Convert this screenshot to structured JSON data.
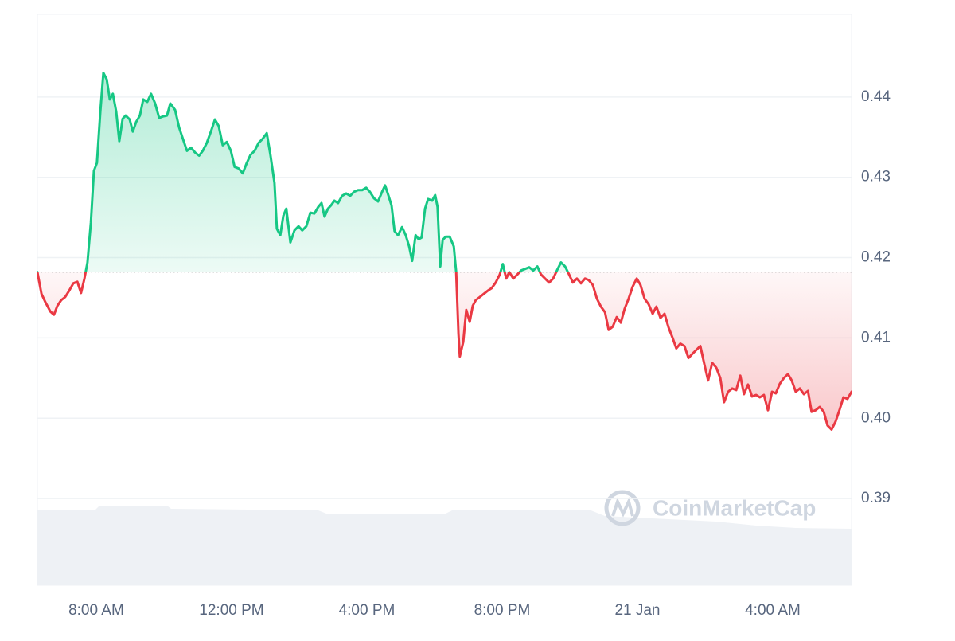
{
  "chart_data": {
    "type": "line",
    "watermark": "CoinMarketCap",
    "x": [
      6.26,
      6.38,
      6.49,
      6.64,
      6.75,
      6.85,
      6.96,
      7.08,
      7.2,
      7.32,
      7.44,
      7.55,
      7.65,
      7.74,
      7.84,
      7.93,
      8.02,
      8.12,
      8.21,
      8.31,
      8.4,
      8.49,
      8.59,
      8.68,
      8.78,
      8.87,
      8.99,
      9.08,
      9.18,
      9.29,
      9.39,
      9.51,
      9.62,
      9.74,
      9.86,
      9.98,
      10.09,
      10.19,
      10.33,
      10.45,
      10.56,
      10.68,
      10.8,
      10.92,
      11.04,
      11.15,
      11.27,
      11.39,
      11.51,
      11.62,
      11.74,
      11.86,
      11.98,
      12.09,
      12.21,
      12.33,
      12.45,
      12.56,
      12.68,
      12.8,
      12.92,
      13.04,
      13.15,
      13.27,
      13.34,
      13.44,
      13.53,
      13.62,
      13.74,
      13.86,
      13.98,
      14.09,
      14.21,
      14.33,
      14.45,
      14.56,
      14.66,
      14.75,
      14.85,
      14.94,
      15.04,
      15.15,
      15.27,
      15.39,
      15.51,
      15.62,
      15.74,
      15.86,
      15.98,
      16.09,
      16.21,
      16.33,
      16.45,
      16.54,
      16.64,
      16.73,
      16.82,
      16.92,
      17.04,
      17.15,
      17.25,
      17.34,
      17.44,
      17.53,
      17.62,
      17.72,
      17.81,
      17.93,
      18.02,
      18.09,
      18.17,
      18.24,
      18.33,
      18.45,
      18.57,
      18.64,
      18.71,
      18.75,
      18.85,
      18.94,
      19.04,
      19.13,
      19.22,
      19.34,
      19.46,
      19.58,
      19.69,
      19.81,
      19.93,
      20.02,
      20.12,
      20.21,
      20.33,
      20.45,
      20.56,
      20.68,
      20.8,
      20.92,
      21.04,
      21.15,
      21.27,
      21.39,
      21.51,
      21.62,
      21.74,
      21.86,
      21.98,
      22.09,
      22.21,
      22.33,
      22.45,
      22.56,
      22.68,
      22.8,
      22.92,
      23.04,
      23.15,
      23.27,
      23.39,
      23.51,
      23.62,
      23.74,
      23.86,
      23.98,
      24.09,
      24.21,
      24.33,
      24.45,
      24.56,
      24.68,
      24.8,
      24.92,
      25.04,
      25.15,
      25.27,
      25.39,
      25.51,
      25.62,
      25.74,
      25.86,
      25.98,
      26.09,
      26.21,
      26.33,
      26.45,
      26.56,
      26.68,
      26.8,
      26.92,
      27.04,
      27.15,
      27.27,
      27.39,
      27.51,
      27.62,
      27.74,
      27.86,
      27.98,
      28.09,
      28.21,
      28.33,
      28.45,
      28.56,
      28.68,
      28.8,
      28.92,
      29.04,
      29.15,
      29.27,
      29.39,
      29.51,
      29.62,
      29.74,
      29.86,
      29.98,
      30.09,
      30.21,
      30.33
    ],
    "values": [
      0.4182,
      0.4155,
      0.4145,
      0.4133,
      0.4129,
      0.414,
      0.4147,
      0.4151,
      0.4159,
      0.4168,
      0.417,
      0.4156,
      0.4174,
      0.4194,
      0.4244,
      0.4308,
      0.4318,
      0.4382,
      0.443,
      0.4422,
      0.4397,
      0.4404,
      0.4382,
      0.4345,
      0.4373,
      0.4377,
      0.4372,
      0.4357,
      0.4369,
      0.4377,
      0.4397,
      0.4394,
      0.4404,
      0.4392,
      0.4374,
      0.4376,
      0.4377,
      0.4392,
      0.4384,
      0.4362,
      0.4348,
      0.4333,
      0.4337,
      0.4331,
      0.4327,
      0.4333,
      0.4343,
      0.4357,
      0.4372,
      0.4364,
      0.434,
      0.4344,
      0.4333,
      0.4313,
      0.4311,
      0.4305,
      0.4318,
      0.4328,
      0.4333,
      0.4343,
      0.4348,
      0.4355,
      0.4328,
      0.4293,
      0.4236,
      0.4228,
      0.4252,
      0.4261,
      0.4219,
      0.4234,
      0.4239,
      0.4234,
      0.4239,
      0.4256,
      0.4255,
      0.4263,
      0.4268,
      0.4251,
      0.4261,
      0.4265,
      0.4271,
      0.4268,
      0.4277,
      0.428,
      0.4277,
      0.4282,
      0.4284,
      0.4284,
      0.4287,
      0.4282,
      0.4274,
      0.427,
      0.4282,
      0.429,
      0.4277,
      0.4265,
      0.4233,
      0.4228,
      0.4238,
      0.4228,
      0.4214,
      0.4196,
      0.4228,
      0.4223,
      0.4225,
      0.4261,
      0.4273,
      0.4271,
      0.4278,
      0.4263,
      0.4189,
      0.4222,
      0.4226,
      0.4226,
      0.4214,
      0.4182,
      0.4105,
      0.4077,
      0.4095,
      0.4135,
      0.412,
      0.414,
      0.4147,
      0.4151,
      0.4155,
      0.4159,
      0.4162,
      0.4169,
      0.4179,
      0.4192,
      0.4174,
      0.4182,
      0.4174,
      0.4179,
      0.4184,
      0.4186,
      0.4188,
      0.4184,
      0.4189,
      0.4179,
      0.4174,
      0.4169,
      0.4174,
      0.4184,
      0.4194,
      0.4189,
      0.4179,
      0.4169,
      0.4174,
      0.4168,
      0.4174,
      0.4172,
      0.4166,
      0.4149,
      0.4139,
      0.4132,
      0.411,
      0.4114,
      0.4126,
      0.4119,
      0.4136,
      0.4149,
      0.4164,
      0.4174,
      0.4166,
      0.4149,
      0.4142,
      0.413,
      0.4139,
      0.4125,
      0.413,
      0.4113,
      0.41,
      0.4087,
      0.4093,
      0.409,
      0.4075,
      0.408,
      0.4085,
      0.409,
      0.4067,
      0.4047,
      0.4069,
      0.4063,
      0.405,
      0.402,
      0.4033,
      0.4037,
      0.4035,
      0.4053,
      0.403,
      0.4042,
      0.4027,
      0.4029,
      0.4026,
      0.4029,
      0.401,
      0.4033,
      0.4031,
      0.4043,
      0.405,
      0.4055,
      0.4047,
      0.4033,
      0.4037,
      0.403,
      0.4034,
      0.4008,
      0.401,
      0.4014,
      0.4008,
      0.3991,
      0.3986,
      0.3996,
      0.4011,
      0.4026,
      0.4024,
      0.4033
    ],
    "baseline": 0.4182,
    "color_up": "#16c784",
    "color_down": "#ea3943",
    "xlim": [
      6.26,
      30.33
    ],
    "xticks": [
      {
        "value": 8,
        "label": "8:00 AM"
      },
      {
        "value": 12,
        "label": "12:00 PM"
      },
      {
        "value": 16,
        "label": "4:00 PM"
      },
      {
        "value": 20,
        "label": "8:00 PM"
      },
      {
        "value": 24,
        "label": "21 Jan"
      },
      {
        "value": 28,
        "label": "4:00 AM"
      }
    ],
    "ylim": [
      0.3792,
      0.4503
    ],
    "yticks": [
      0.39,
      {
        "value": 0.4,
        "label": "0.40"
      },
      0.41,
      0.42,
      0.43,
      0.44
    ],
    "grid": true
  }
}
